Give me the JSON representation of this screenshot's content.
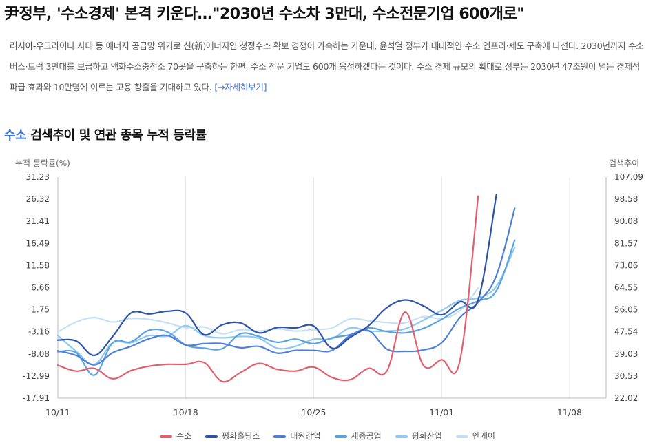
{
  "article": {
    "headline": "尹정부, '수소경제' 본격 키운다…\"2030년 수소차 3만대, 수소전문기업 600개로\"",
    "summary": "러시아-우크라이나 사태 등 에너지 공급망 위기로 신(新)에너지인 청정수소 확보 경쟁이 가속하는 가운데, 윤석열 정부가 대대적인 수소 인프라·제도 구축에 나선다. 2030년까지 수소 버스·트럭 3만대를 보급하고 액화수소충전소 70곳을 구축하는 한편, 수소 전문 기업도 600개 육성하겠다는 것이다. 수소 경제 규모의 확대로 정부는 2030년 47조원이 넘는 경제적 파급 효과와 10만명에 이르는 고용 창출을 기대하고 있다.",
    "more_link": "[→자세히보기]"
  },
  "section": {
    "keyword": "수소",
    "title_rest": " 검색추이 및 연관 종목 누적 등락률"
  },
  "chart_data": {
    "type": "line",
    "ylabel_left": "누적 등락률(%)",
    "ylabel_right": "검색추이",
    "ylim_left": [
      -17.91,
      31.23
    ],
    "ylim_right": [
      22.02,
      107.09
    ],
    "yticks_left": [
      "31.23",
      "26.32",
      "21.41",
      "16.49",
      "11.58",
      "6.66",
      "1.75",
      "-3.16",
      "-8.08",
      "-12.99",
      "-17.91"
    ],
    "yticks_right": [
      "107.09",
      "98.58",
      "90.08",
      "81.57",
      "73.06",
      "64.55",
      "56.05",
      "47.54",
      "39.03",
      "30.53",
      "22.02"
    ],
    "x": [
      "10/11",
      "10/12",
      "10/13",
      "10/14",
      "10/15",
      "10/16",
      "10/17",
      "10/18",
      "10/19",
      "10/20",
      "10/21",
      "10/22",
      "10/23",
      "10/24",
      "10/25",
      "10/26",
      "10/27",
      "10/28",
      "10/29",
      "10/30",
      "10/31",
      "11/01",
      "11/02",
      "11/03",
      "11/04",
      "11/05",
      "11/06",
      "11/07",
      "11/08",
      "11/09",
      "11/10"
    ],
    "xtick_labels": [
      "10/11",
      "10/18",
      "10/25",
      "11/01",
      "11/08"
    ],
    "grid": "vertical",
    "legend_position": "bottom",
    "series": [
      {
        "name": "수소",
        "color": "#e0606e",
        "values": [
          -10.6,
          -11.9,
          -11.3,
          -13.6,
          -11.8,
          -10.8,
          -10.4,
          -10.4,
          -10.0,
          -14.2,
          -12.2,
          -10.2,
          -11.5,
          -11.9,
          -11.0,
          -13.3,
          -13.8,
          -11.3,
          -11.9,
          1.2,
          -10.6,
          -9.4,
          -9.6,
          27.0,
          null,
          null,
          null,
          null,
          null,
          null,
          null
        ]
      },
      {
        "name": "평화홀딩스",
        "color": "#2e52a8",
        "values": [
          -5.0,
          -5.2,
          -8.4,
          -4.2,
          1.0,
          0.8,
          1.4,
          1.0,
          -3.8,
          -1.6,
          -1.2,
          -3.4,
          -2.2,
          -2.3,
          -1.9,
          -6.8,
          -4.4,
          -1.8,
          2.2,
          3.9,
          2.6,
          0.6,
          3.5,
          4.0,
          27.4,
          null,
          null,
          null,
          null,
          null,
          null
        ]
      },
      {
        "name": "대원강업",
        "color": "#4f7ed8",
        "values": [
          -7.4,
          -8.4,
          -10.5,
          -7.8,
          -6.4,
          -4.7,
          -4.0,
          -6.1,
          -5.8,
          -5.8,
          -6.7,
          -6.4,
          -7.9,
          -7.3,
          -7.3,
          -7.3,
          -4.0,
          -2.9,
          -7.0,
          -7.5,
          -7.2,
          -5.6,
          0.0,
          3.4,
          9.4,
          24.3,
          null,
          null,
          null,
          null,
          null
        ]
      },
      {
        "name": "세종공업",
        "color": "#5aa3e0",
        "values": [
          -7.6,
          -7.8,
          -12.8,
          -5.6,
          -5.4,
          -2.8,
          -3.2,
          -6.1,
          -6.8,
          -6.9,
          -3.6,
          -4.2,
          -5.5,
          -4.8,
          -5.8,
          -4.5,
          -3.8,
          -2.3,
          -3.1,
          -3.4,
          -2.4,
          -0.4,
          2.1,
          3.7,
          6.0,
          17.2,
          null,
          null,
          null,
          null,
          null
        ]
      },
      {
        "name": "평화산업",
        "color": "#8ec9ef",
        "values": [
          -4.0,
          -7.5,
          -10.4,
          -5.6,
          -5.6,
          -4.0,
          -4.1,
          -1.8,
          -4.0,
          -4.5,
          -4.2,
          -4.6,
          -6.8,
          -6.4,
          -4.8,
          -4.7,
          -2.3,
          -3.0,
          -3.0,
          -2.5,
          -0.6,
          1.6,
          3.8,
          4.4,
          7.0,
          15.6,
          null,
          null,
          null,
          null,
          null
        ]
      },
      {
        "name": "엔케이",
        "color": "#c5dff3",
        "values": [
          -3.2,
          -1.0,
          0.0,
          -1.0,
          -0.2,
          -0.4,
          -1.2,
          -2.2,
          -2.1,
          -3.6,
          -2.7,
          -3.0,
          -2.5,
          -3.0,
          -2.7,
          -2.3,
          -0.3,
          -0.7,
          -1.1,
          -1.2,
          0.2,
          -0.2,
          1.5,
          6.6,
          null,
          null,
          null,
          null,
          null,
          null,
          null
        ]
      }
    ]
  }
}
